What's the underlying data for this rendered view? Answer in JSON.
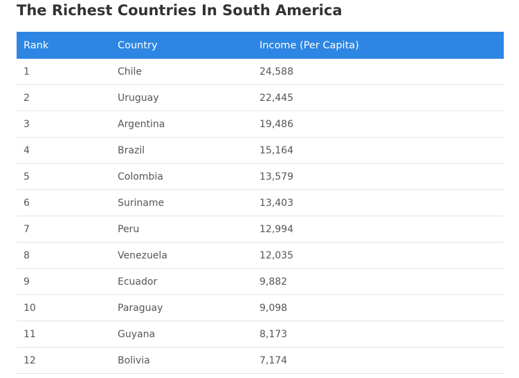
{
  "title": "The Richest Countries In South America",
  "table": {
    "headers": [
      "Rank",
      "Country",
      "Income (Per Capita)"
    ],
    "rows": [
      [
        "1",
        "Chile",
        "24,588"
      ],
      [
        "2",
        "Uruguay",
        "22,445"
      ],
      [
        "3",
        "Argentina",
        "19,486"
      ],
      [
        "4",
        "Brazil",
        "15,164"
      ],
      [
        "5",
        "Colombia",
        "13,579"
      ],
      [
        "6",
        "Suriname",
        "13,403"
      ],
      [
        "7",
        "Peru",
        "12,994"
      ],
      [
        "8",
        "Venezuela",
        "12,035"
      ],
      [
        "9",
        "Ecuador",
        "9,882"
      ],
      [
        "10",
        "Paraguay",
        "9,098"
      ],
      [
        "11",
        "Guyana",
        "8,173"
      ],
      [
        "12",
        "Bolivia",
        "7,174"
      ]
    ]
  },
  "colors": {
    "header_background": "#2d86e3",
    "header_text": "#ffffff",
    "title_text": "#333333",
    "cell_text": "#555555",
    "row_divider": "#e3e3e3"
  }
}
